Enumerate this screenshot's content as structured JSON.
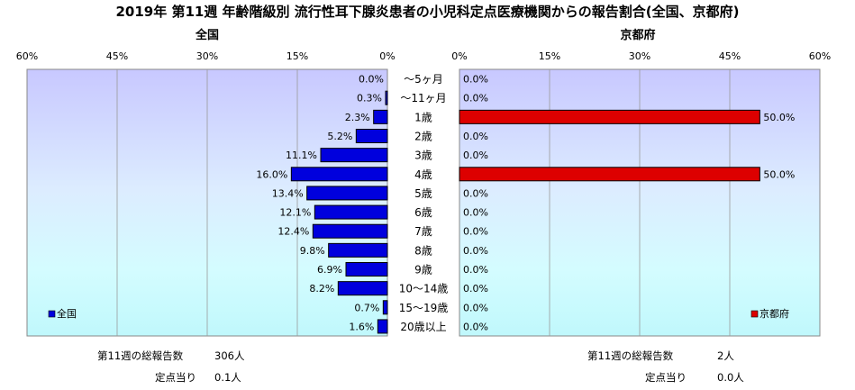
{
  "title": "2019年 第11週 年齢階級別 流行性耳下腺炎患者の小児科定点医療機関からの報告割合(全国、京都府)",
  "panels": {
    "left": {
      "title": "全国",
      "legend": "全国"
    },
    "right": {
      "title": "京都府",
      "legend": "京都府"
    }
  },
  "footer": {
    "left": {
      "total_label": "第11週の総報告数",
      "total_value": "306人",
      "per_label": "定点当り",
      "per_value": "0.1人"
    },
    "right": {
      "total_label": "第11週の総報告数",
      "total_value": "2人",
      "per_label": "定点当り",
      "per_value": "0.0人"
    }
  },
  "chart_data": [
    {
      "type": "bar",
      "orientation": "horizontal",
      "direction": "right-to-left",
      "title": "全国",
      "categories": [
        "～5ヶ月",
        "～11ヶ月",
        "1歳",
        "2歳",
        "3歳",
        "4歳",
        "5歳",
        "6歳",
        "7歳",
        "8歳",
        "9歳",
        "10～14歳",
        "15～19歳",
        "20歳以上"
      ],
      "series": [
        {
          "name": "全国",
          "color": "#0000dd",
          "values": [
            0.0,
            0.3,
            2.3,
            5.2,
            11.1,
            16.0,
            13.4,
            12.1,
            12.4,
            9.8,
            6.9,
            8.2,
            0.7,
            1.6
          ],
          "labels": [
            "0.0%",
            "0.3%",
            "2.3%",
            "5.2%",
            "11.1%",
            "16.0%",
            "13.4%",
            "12.1%",
            "12.4%",
            "9.8%",
            "6.9%",
            "8.2%",
            "0.7%",
            "1.6%"
          ]
        }
      ],
      "xlim": [
        0,
        60
      ],
      "ticks": [
        "0%",
        "15%",
        "30%",
        "45%",
        "60%"
      ],
      "legend_position": "bottom-left",
      "grid": true
    },
    {
      "type": "bar",
      "orientation": "horizontal",
      "direction": "left-to-right",
      "title": "京都府",
      "categories": [
        "～5ヶ月",
        "～11ヶ月",
        "1歳",
        "2歳",
        "3歳",
        "4歳",
        "5歳",
        "6歳",
        "7歳",
        "8歳",
        "9歳",
        "10～14歳",
        "15～19歳",
        "20歳以上"
      ],
      "series": [
        {
          "name": "京都府",
          "color": "#dd0000",
          "values": [
            0.0,
            0.0,
            50.0,
            0.0,
            0.0,
            50.0,
            0.0,
            0.0,
            0.0,
            0.0,
            0.0,
            0.0,
            0.0,
            0.0
          ],
          "labels": [
            "0.0%",
            "0.0%",
            "50.0%",
            "0.0%",
            "0.0%",
            "50.0%",
            "0.0%",
            "0.0%",
            "0.0%",
            "0.0%",
            "0.0%",
            "0.0%",
            "0.0%",
            "0.0%"
          ]
        }
      ],
      "xlim": [
        0,
        60
      ],
      "ticks": [
        "0%",
        "15%",
        "30%",
        "45%",
        "60%"
      ],
      "legend_position": "bottom-right",
      "grid": true
    }
  ]
}
